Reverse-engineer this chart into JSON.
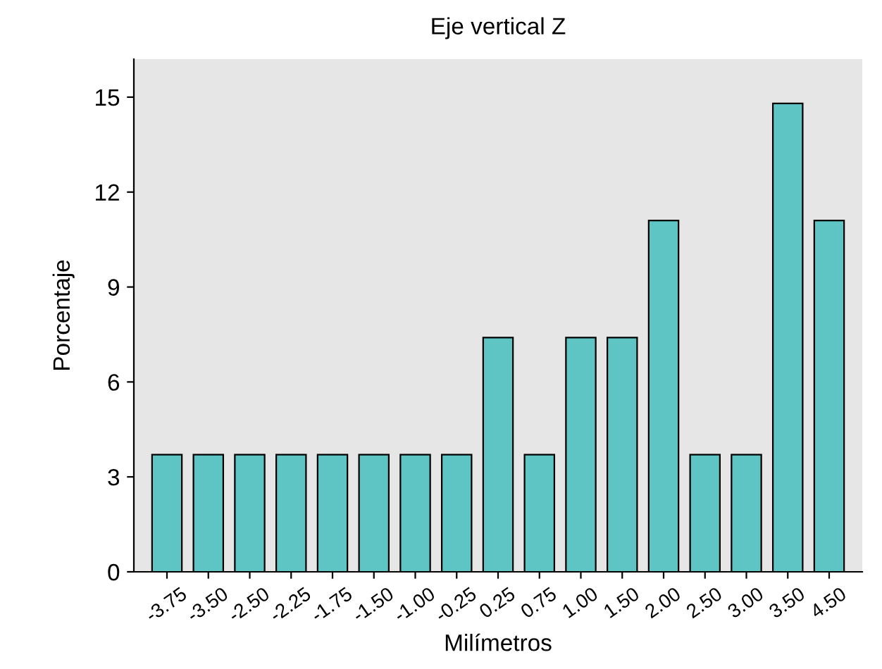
{
  "chart_data": {
    "type": "bar",
    "title": "Eje vertical Z",
    "xlabel": "Milímetros",
    "ylabel": "Porcentaje",
    "categories": [
      "-3.75",
      "-3.50",
      "-2.50",
      "-2.25",
      "-1.75",
      "-1.50",
      "-1.00",
      "-0.25",
      "0.25",
      "0.75",
      "1.00",
      "1.50",
      "2.00",
      "2.50",
      "3.00",
      "3.50",
      "4.50"
    ],
    "values": [
      3.7,
      3.7,
      3.7,
      3.7,
      3.7,
      3.7,
      3.7,
      3.7,
      7.4,
      3.7,
      7.4,
      7.4,
      11.1,
      3.7,
      3.7,
      14.8,
      11.1
    ],
    "color": "#5fc4c4",
    "ylim": [
      0,
      16.2
    ],
    "yticks": [
      0,
      3,
      6,
      9,
      12,
      15
    ],
    "grid": false
  }
}
